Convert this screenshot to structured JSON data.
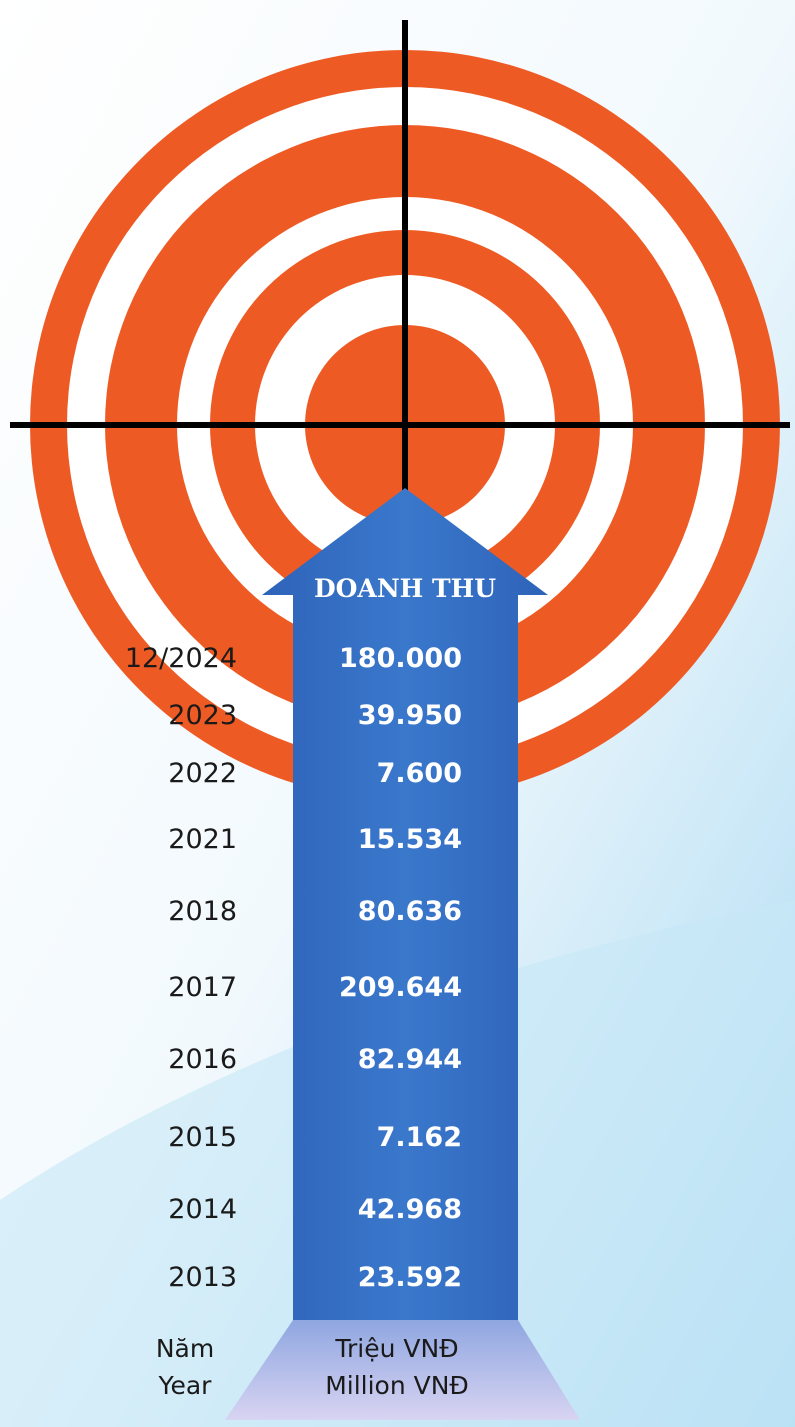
{
  "title": "DOANH THU",
  "rows": [
    {
      "year": "12/2024",
      "value": "180.000"
    },
    {
      "year": "2023",
      "value": "39.950"
    },
    {
      "year": "2022",
      "value": "7.600"
    },
    {
      "year": "2021",
      "value": "15.534"
    },
    {
      "year": "2018",
      "value": "80.636"
    },
    {
      "year": "2017",
      "value": "209.644"
    },
    {
      "year": "2016",
      "value": "82.944"
    },
    {
      "year": "2015",
      "value": "7.162"
    },
    {
      "year": "2014",
      "value": "42.968"
    },
    {
      "year": "2013",
      "value": "23.592"
    }
  ],
  "footer": {
    "year_label": [
      "Năm",
      "Year"
    ],
    "unit_label": [
      "Triệu VNĐ",
      "Million  VNĐ"
    ]
  }
}
